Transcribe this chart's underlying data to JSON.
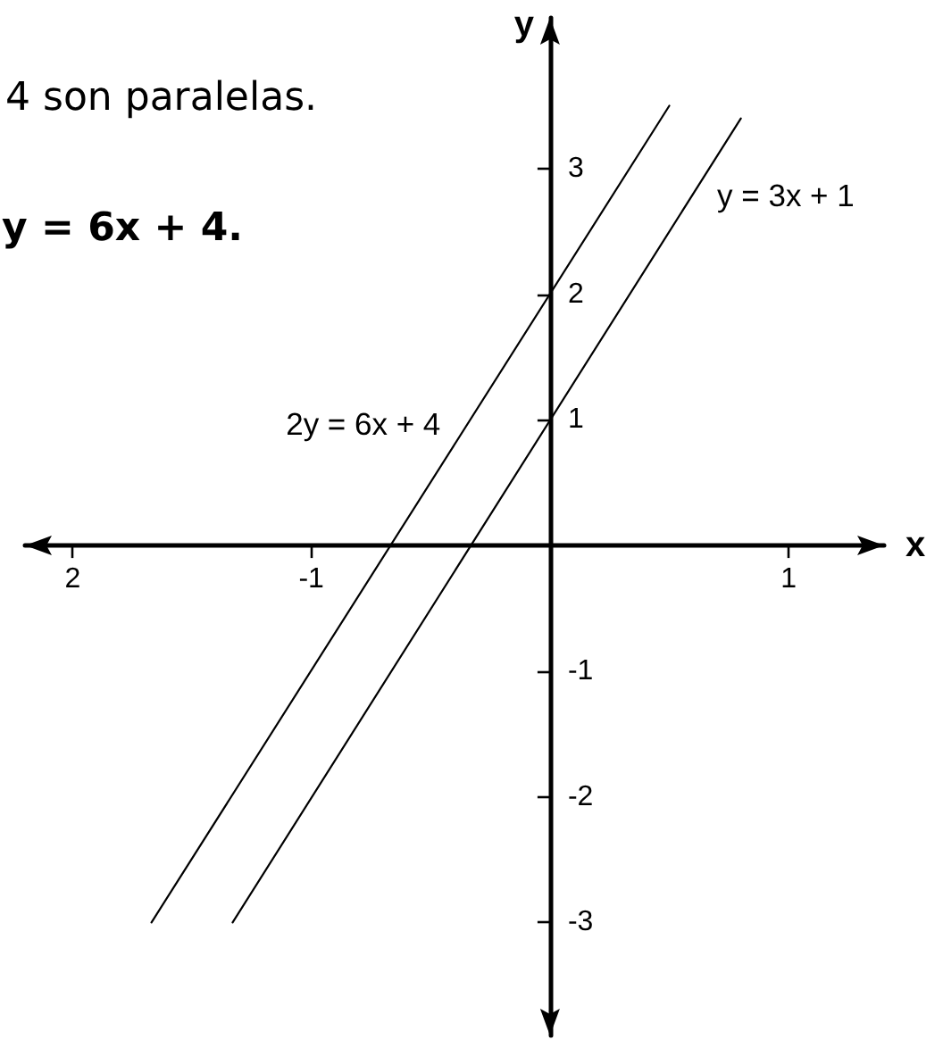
{
  "chart_data": {
    "type": "line",
    "xlabel": "x",
    "ylabel": "y",
    "annotations": [
      "4 son paralelas.",
      "y = 6x + 4."
    ],
    "series": [
      {
        "name": "y = 3x + 1",
        "color": "#000000",
        "x": [
          -1.33,
          0.8
        ],
        "values": [
          -3,
          3.4
        ]
      },
      {
        "name": "2y = 6x + 4",
        "color": "#000000",
        "x": [
          -1.67,
          0.5
        ],
        "values": [
          -3,
          3.5
        ]
      }
    ],
    "xlim": [
      -2.2,
      1.4
    ],
    "ylim": [
      -3.9,
      4.2
    ],
    "xticks": [
      {
        "value": -2,
        "label": "2"
      },
      -1,
      1
    ],
    "yticks": [
      -3,
      -2,
      -1,
      1,
      2,
      3
    ],
    "grid": false,
    "marker": "none",
    "line_style": "solid"
  }
}
